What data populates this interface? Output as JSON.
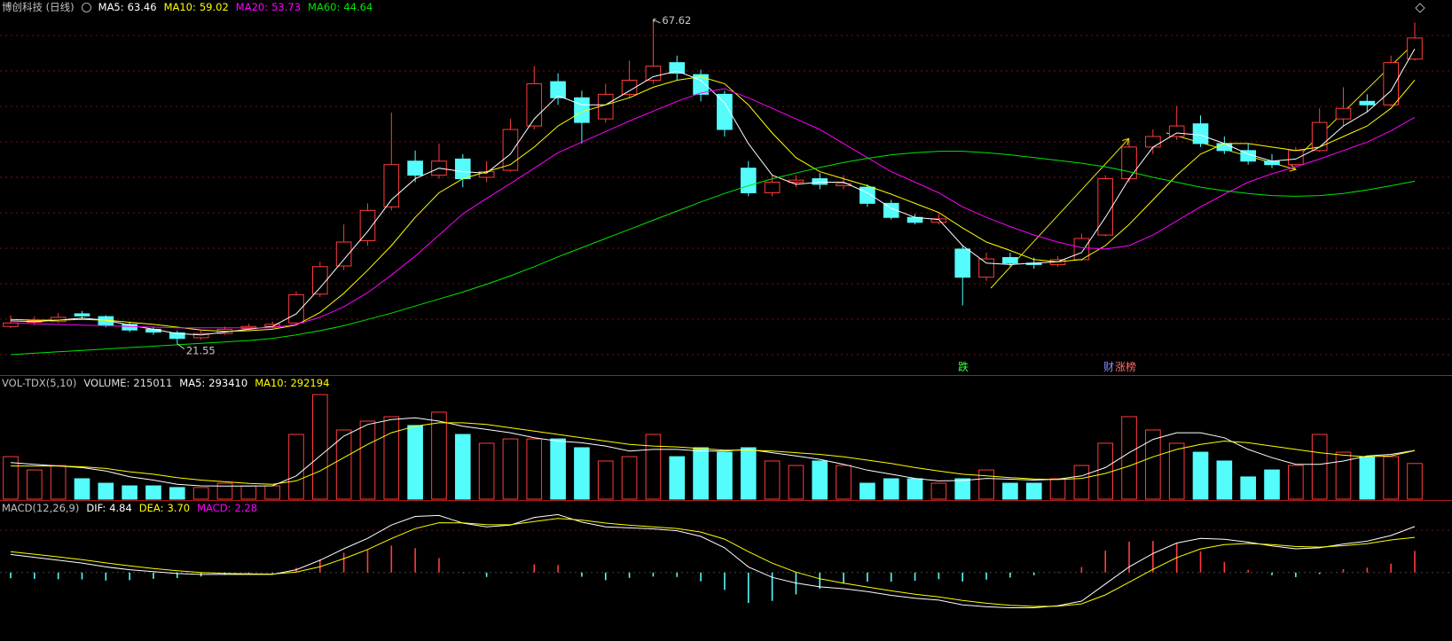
{
  "chart_data": [
    {
      "type": "candlestick",
      "title": "博创科技 (日线)",
      "ylim": [
        17.1,
        70.4
      ],
      "up_color": "#ff3c3c",
      "down_color": "#54fcfc",
      "open": [
        24.0,
        24.6,
        24.7,
        25.8,
        25.4,
        24.3,
        23.6,
        23.1,
        22.4,
        23.0,
        23.7,
        24.0,
        24.5,
        28.6,
        32.6,
        36.2,
        41.0,
        47.5,
        45.5,
        47.8,
        45.2,
        46.2,
        52.5,
        58.8,
        56.5,
        53.5,
        57.0,
        59.0,
        61.5,
        59.8,
        57.0,
        46.5,
        43.0,
        44.5,
        45.0,
        44.0,
        43.8,
        41.5,
        39.5,
        38.8,
        35.0,
        31.0,
        33.8,
        33.0,
        32.8,
        33.5,
        37.0,
        45.0,
        49.5,
        51.0,
        52.8,
        50.0,
        49.0,
        47.5,
        47.0,
        49.0,
        53.5,
        56.0,
        55.5,
        62.0
      ],
      "high": [
        25.6,
        25.4,
        25.9,
        26.2,
        25.6,
        24.6,
        24.0,
        23.4,
        23.4,
        24.0,
        24.4,
        24.7,
        29.0,
        33.2,
        38.5,
        41.5,
        54.4,
        49.0,
        50.0,
        48.5,
        47.5,
        53.5,
        61.0,
        60.0,
        57.5,
        58.5,
        61.8,
        67.62,
        62.5,
        60.5,
        57.5,
        47.5,
        45.5,
        45.5,
        45.8,
        45.5,
        44.2,
        42.0,
        40.0,
        40.0,
        35.5,
        34.5,
        34.5,
        33.8,
        34.0,
        37.2,
        45.5,
        50.5,
        52.0,
        55.3,
        54.0,
        51.0,
        50.0,
        48.5,
        49.5,
        55.0,
        58.0,
        57.0,
        62.5,
        67.2
      ],
      "low": [
        23.8,
        24.2,
        24.5,
        25.1,
        23.9,
        23.2,
        22.8,
        21.55,
        22.1,
        22.8,
        23.5,
        23.8,
        24.3,
        28.2,
        32.0,
        35.5,
        40.5,
        44.5,
        45.0,
        43.8,
        44.5,
        46.0,
        52.0,
        55.5,
        50.0,
        53.0,
        56.5,
        58.5,
        59.0,
        56.0,
        51.0,
        42.5,
        42.5,
        43.8,
        43.5,
        43.5,
        41.0,
        39.2,
        38.5,
        38.5,
        27.0,
        30.5,
        32.5,
        32.2,
        32.5,
        33.3,
        36.8,
        44.5,
        48.5,
        50.5,
        49.5,
        48.5,
        47.0,
        46.5,
        46.8,
        48.8,
        52.5,
        54.5,
        55.3,
        61.8
      ],
      "close": [
        24.5,
        24.8,
        25.3,
        25.5,
        24.2,
        23.5,
        23.2,
        22.3,
        23.0,
        23.6,
        24.0,
        24.3,
        28.5,
        32.5,
        36.0,
        40.5,
        47.0,
        45.5,
        47.5,
        45.0,
        46.0,
        52.0,
        58.5,
        56.5,
        53.0,
        57.0,
        59.0,
        61.0,
        60.0,
        57.0,
        52.0,
        43.0,
        44.5,
        44.8,
        44.2,
        44.3,
        41.5,
        39.5,
        38.8,
        39.3,
        31.0,
        33.6,
        33.0,
        32.8,
        33.5,
        36.5,
        45.0,
        49.5,
        51.0,
        52.5,
        50.0,
        49.0,
        47.5,
        47.0,
        49.0,
        53.0,
        55.0,
        55.5,
        61.5,
        65.0
      ],
      "series": [
        {
          "name": "MA5:",
          "color": "#ffffff",
          "values": [
            24.8,
            24.7,
            24.9,
            25.2,
            24.9,
            24.2,
            23.6,
            23.0,
            22.8,
            23.2,
            23.6,
            24.0,
            25.8,
            29.5,
            33.5,
            37.5,
            42.0,
            45.0,
            46.5,
            46.0,
            45.8,
            48.5,
            53.5,
            56.8,
            55.5,
            55.5,
            57.5,
            59.5,
            60.3,
            59.0,
            55.8,
            50.0,
            45.5,
            44.2,
            44.5,
            44.5,
            43.0,
            40.8,
            39.5,
            39.2,
            35.5,
            33.0,
            32.8,
            33.0,
            33.2,
            34.5,
            39.5,
            45.0,
            49.5,
            51.5,
            51.2,
            50.0,
            48.5,
            47.5,
            47.8,
            49.5,
            52.5,
            54.5,
            57.5,
            63.46
          ]
        },
        {
          "name": "MA10:",
          "color": "#ffff00",
          "values": [
            25.0,
            24.9,
            24.9,
            25.0,
            24.9,
            24.6,
            24.3,
            23.9,
            23.5,
            23.3,
            23.4,
            23.6,
            24.2,
            26.0,
            28.7,
            32.0,
            35.5,
            39.5,
            43.0,
            45.0,
            46.0,
            47.0,
            49.5,
            52.5,
            54.5,
            55.5,
            56.5,
            58.0,
            59.0,
            59.5,
            58.5,
            55.5,
            51.5,
            48.0,
            46.0,
            45.0,
            44.0,
            42.8,
            41.5,
            40.2,
            38.0,
            36.0,
            34.8,
            33.5,
            33.2,
            33.5,
            35.5,
            38.5,
            42.0,
            45.5,
            48.5,
            50.0,
            50.0,
            49.5,
            49.0,
            49.5,
            51.0,
            52.5,
            55.0,
            59.02
          ]
        },
        {
          "name": "MA20:",
          "color": "#ff00ff",
          "values": [
            24.5,
            24.4,
            24.3,
            24.2,
            24.1,
            24.0,
            23.9,
            23.8,
            23.8,
            23.8,
            23.8,
            23.8,
            24.3,
            25.3,
            26.8,
            28.8,
            31.3,
            34.0,
            37.0,
            40.0,
            42.2,
            44.3,
            46.5,
            48.7,
            50.2,
            51.7,
            53.2,
            54.6,
            56.0,
            57.2,
            57.8,
            56.5,
            55.0,
            53.5,
            52.0,
            50.0,
            48.0,
            46.0,
            44.5,
            43.0,
            41.0,
            39.5,
            38.2,
            37.0,
            36.0,
            35.2,
            35.0,
            35.5,
            37.0,
            39.0,
            41.0,
            42.8,
            44.5,
            45.7,
            46.7,
            47.8,
            49.0,
            50.2,
            51.8,
            53.73
          ]
        },
        {
          "name": "MA60:",
          "color": "#00e600",
          "values": [
            20.0,
            20.2,
            20.4,
            20.6,
            20.8,
            21.0,
            21.2,
            21.4,
            21.6,
            21.8,
            22.0,
            22.3,
            22.8,
            23.4,
            24.1,
            25.0,
            25.9,
            26.9,
            27.9,
            28.9,
            30.0,
            31.2,
            32.5,
            33.9,
            35.2,
            36.5,
            37.8,
            39.1,
            40.4,
            41.7,
            42.9,
            44.0,
            45.0,
            45.8,
            46.6,
            47.3,
            47.9,
            48.4,
            48.7,
            48.9,
            48.9,
            48.7,
            48.4,
            48.0,
            47.6,
            47.2,
            46.7,
            46.0,
            45.2,
            44.5,
            43.8,
            43.3,
            42.9,
            42.6,
            42.5,
            42.6,
            42.9,
            43.4,
            44.0,
            44.64
          ]
        }
      ],
      "annotations": [
        {
          "text": "跌"
        },
        {
          "text": "财"
        },
        {
          "text": "涨榜"
        }
      ]
    },
    {
      "type": "volume",
      "title": "VOL-TDX(5,10)",
      "volume_label": "VOLUME:",
      "ylim": [
        0,
        700000
      ],
      "values": [
        256000,
        176000,
        203000,
        123000,
        96000,
        80000,
        80000,
        70000,
        70000,
        96000,
        80000,
        80000,
        390000,
        630000,
        417000,
        470000,
        497000,
        444000,
        524000,
        390000,
        337000,
        363000,
        363000,
        363000,
        310000,
        230000,
        256000,
        390000,
        256000,
        310000,
        283000,
        310000,
        230000,
        203000,
        230000,
        203000,
        96000,
        123000,
        123000,
        96000,
        123000,
        176000,
        96000,
        96000,
        123000,
        203000,
        337000,
        497000,
        417000,
        337000,
        283000,
        230000,
        134000,
        176000,
        203000,
        390000,
        283000,
        256000,
        256000,
        215011
      ],
      "series": [
        {
          "name": "MA5:",
          "color": "#ffffff",
          "values": [
            220000,
            210000,
            200000,
            190000,
            170000,
            135000,
            115000,
            90000,
            80000,
            79000,
            79000,
            80000,
            140000,
            260000,
            380000,
            450000,
            480000,
            490000,
            470000,
            440000,
            420000,
            400000,
            370000,
            350000,
            340000,
            320000,
            290000,
            300000,
            300000,
            290000,
            290000,
            300000,
            280000,
            260000,
            240000,
            210000,
            175000,
            150000,
            125000,
            110000,
            112000,
            125000,
            120000,
            115000,
            120000,
            140000,
            190000,
            280000,
            360000,
            400000,
            400000,
            370000,
            300000,
            250000,
            210000,
            210000,
            230000,
            260000,
            270000,
            293410
          ]
        },
        {
          "name": "MA10:",
          "color": "#ffff00",
          "values": [
            200000,
            200000,
            200000,
            195000,
            185000,
            165000,
            150000,
            130000,
            115000,
            105000,
            95000,
            90000,
            110000,
            170000,
            250000,
            330000,
            400000,
            440000,
            460000,
            460000,
            450000,
            430000,
            410000,
            390000,
            370000,
            350000,
            330000,
            320000,
            315000,
            305000,
            295000,
            295000,
            290000,
            280000,
            270000,
            255000,
            235000,
            215000,
            190000,
            170000,
            150000,
            140000,
            130000,
            122000,
            118000,
            125000,
            155000,
            200000,
            255000,
            300000,
            330000,
            350000,
            340000,
            320000,
            300000,
            280000,
            265000,
            255000,
            260000,
            292194
          ]
        }
      ]
    },
    {
      "type": "macd",
      "title": "MACD(12,26,9)",
      "ylim": [
        -4.4,
        6.6
      ],
      "series": [
        {
          "name": "DIF:",
          "color": "#ffffff",
          "values": [
            1.9,
            1.6,
            1.3,
            1.0,
            0.6,
            0.3,
            0.1,
            -0.1,
            -0.2,
            -0.2,
            -0.2,
            -0.2,
            0.3,
            1.3,
            2.5,
            3.6,
            5.0,
            5.9,
            6.0,
            5.2,
            4.8,
            5.0,
            5.8,
            6.1,
            5.3,
            4.8,
            4.7,
            4.6,
            4.4,
            3.8,
            2.6,
            0.6,
            -0.5,
            -1.1,
            -1.5,
            -1.7,
            -2.0,
            -2.4,
            -2.7,
            -2.9,
            -3.4,
            -3.6,
            -3.7,
            -3.7,
            -3.5,
            -3.0,
            -1.2,
            0.6,
            2.0,
            3.1,
            3.6,
            3.5,
            3.2,
            2.8,
            2.5,
            2.6,
            3.0,
            3.3,
            3.9,
            4.84
          ]
        },
        {
          "name": "DEA:",
          "color": "#ffff00",
          "last_label": "3.70",
          "values": [
            2.2,
            1.93,
            1.65,
            1.36,
            1.02,
            0.7,
            0.43,
            0.19,
            0.01,
            -0.08,
            -0.13,
            -0.16,
            0.05,
            0.61,
            1.46,
            2.42,
            3.58,
            4.62,
            5.24,
            5.22,
            5.03,
            5.02,
            5.37,
            5.7,
            5.52,
            5.2,
            4.98,
            4.81,
            4.63,
            4.26,
            3.51,
            2.2,
            0.99,
            0.05,
            -0.65,
            -1.12,
            -1.52,
            -1.92,
            -2.27,
            -2.55,
            -2.93,
            -3.23,
            -3.44,
            -3.56,
            -3.53,
            -3.29,
            -2.35,
            -1.02,
            0.34,
            1.58,
            2.49,
            2.94,
            3.06,
            2.94,
            2.74,
            2.68,
            2.82,
            3.04,
            3.43,
            3.7
          ]
        }
      ],
      "histogram": {
        "name": "MACD:",
        "color": "#ff00ff",
        "up_color": "#ff3c3c",
        "down_color": "#54fcfc",
        "values": [
          -0.6,
          -0.66,
          -0.7,
          -0.72,
          -0.84,
          -0.8,
          -0.66,
          -0.58,
          -0.42,
          -0.24,
          -0.14,
          -0.08,
          0.5,
          1.38,
          2.08,
          2.36,
          2.84,
          2.56,
          1.52,
          -0.04,
          -0.46,
          -0.04,
          0.86,
          0.8,
          -0.44,
          -0.8,
          -0.56,
          -0.42,
          -0.46,
          -0.92,
          -1.82,
          -3.2,
          -2.98,
          -2.3,
          -1.7,
          -1.16,
          -0.96,
          -0.96,
          -0.86,
          -0.7,
          -0.94,
          -0.74,
          -0.52,
          -0.28,
          0.06,
          0.58,
          2.3,
          3.24,
          3.32,
          3.04,
          2.22,
          1.12,
          0.28,
          -0.28,
          -0.48,
          -0.16,
          0.36,
          0.52,
          0.94,
          2.28
        ]
      }
    }
  ]
}
